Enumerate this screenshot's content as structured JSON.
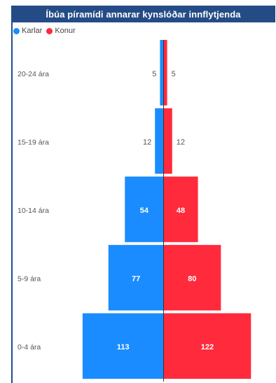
{
  "title": "Íbúa píramídi annarar kynslóðar innflytjenda",
  "legend": {
    "male": "Karlar",
    "female": "Konur"
  },
  "colors": {
    "male": "#1a8cff",
    "female": "#ff2a3c",
    "title_bg": "#244b86"
  },
  "chart_data": {
    "type": "bar",
    "orientation": "horizontal-pyramid",
    "categories": [
      "20-24 ára",
      "15-19 ára",
      "10-14 ára",
      "5-9 ára",
      "0-4 ára"
    ],
    "series": [
      {
        "name": "Karlar",
        "values": [
          5,
          12,
          54,
          77,
          113
        ]
      },
      {
        "name": "Konur",
        "values": [
          5,
          12,
          48,
          80,
          122
        ]
      }
    ],
    "xlim": [
      -130,
      130
    ],
    "legend_position": "top-left",
    "grid": false
  }
}
